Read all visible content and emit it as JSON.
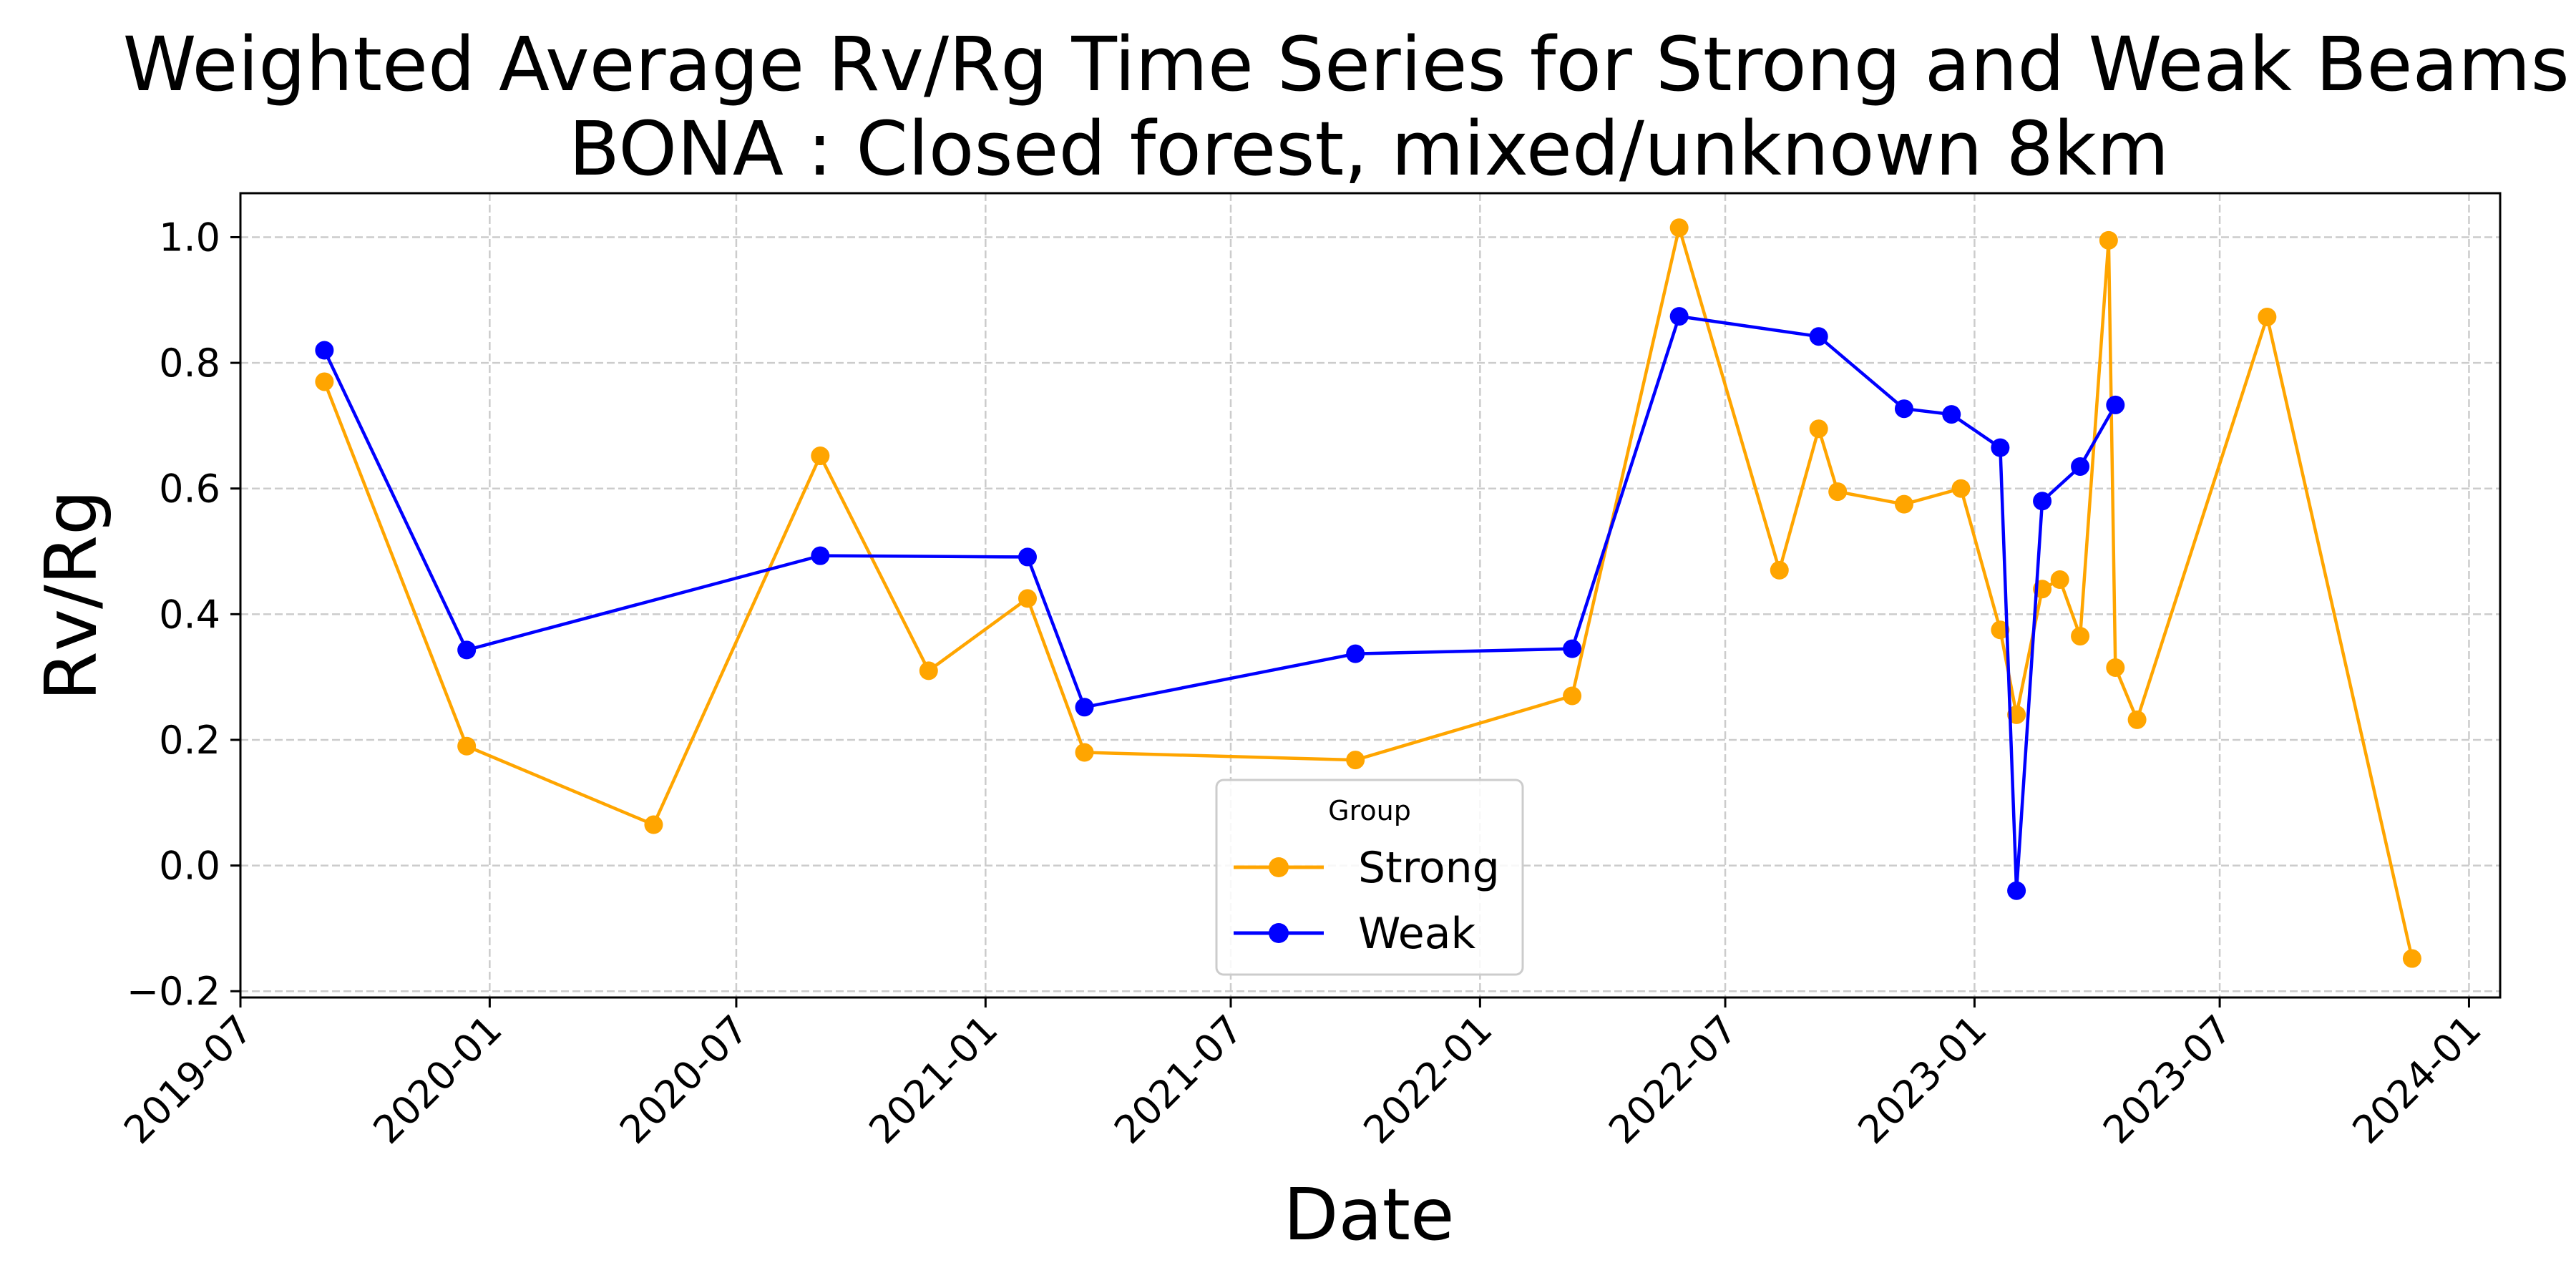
{
  "chart_data": {
    "type": "line",
    "title_lines": [
      "Weighted Average Rv/Rg Time Series for Strong and Weak Beams at",
      "BONA : Closed forest, mixed/unknown 8km"
    ],
    "xlabel": "Date",
    "ylabel": "Rv/Rg",
    "x_ticks": [
      "2019-07",
      "2020-01",
      "2020-07",
      "2021-01",
      "2021-07",
      "2022-01",
      "2022-07",
      "2023-01",
      "2023-07",
      "2024-01"
    ],
    "y_ticks": [
      "−0.2",
      "0.0",
      "0.2",
      "0.4",
      "0.6",
      "0.8",
      "1.0"
    ],
    "y_tick_values": [
      -0.2,
      0.0,
      0.2,
      0.4,
      0.6,
      0.8,
      1.0
    ],
    "xlim": [
      "2019-07-01",
      "2024-01-24"
    ],
    "ylim": [
      -0.21,
      1.07
    ],
    "grid": true,
    "legend": {
      "title": "Group",
      "placement": "lower center"
    },
    "series": [
      {
        "name": "Strong",
        "color": "#FFA500",
        "points": [
          {
            "x": "2019-09-01",
            "y": 0.77
          },
          {
            "x": "2019-12-15",
            "y": 0.19
          },
          {
            "x": "2020-05-01",
            "y": 0.065
          },
          {
            "x": "2020-09-01",
            "y": 0.652
          },
          {
            "x": "2020-11-20",
            "y": 0.31
          },
          {
            "x": "2021-02-01",
            "y": 0.425
          },
          {
            "x": "2021-03-15",
            "y": 0.18
          },
          {
            "x": "2021-10-01",
            "y": 0.168
          },
          {
            "x": "2022-03-10",
            "y": 0.27
          },
          {
            "x": "2022-05-28",
            "y": 1.015
          },
          {
            "x": "2022-08-10",
            "y": 0.47
          },
          {
            "x": "2022-09-08",
            "y": 0.695
          },
          {
            "x": "2022-09-22",
            "y": 0.595
          },
          {
            "x": "2022-11-10",
            "y": 0.575
          },
          {
            "x": "2022-12-22",
            "y": 0.6
          },
          {
            "x": "2023-01-20",
            "y": 0.375
          },
          {
            "x": "2023-02-01",
            "y": 0.24
          },
          {
            "x": "2023-02-20",
            "y": 0.44
          },
          {
            "x": "2023-03-05",
            "y": 0.455
          },
          {
            "x": "2023-03-20",
            "y": 0.365
          },
          {
            "x": "2023-04-10",
            "y": 0.995
          },
          {
            "x": "2023-04-15",
            "y": 0.315
          },
          {
            "x": "2023-05-01",
            "y": 0.232
          },
          {
            "x": "2023-08-05",
            "y": 0.873
          },
          {
            "x": "2023-11-20",
            "y": -0.148
          }
        ]
      },
      {
        "name": "Weak",
        "color": "#0000FF",
        "points": [
          {
            "x": "2019-09-01",
            "y": 0.82
          },
          {
            "x": "2019-12-15",
            "y": 0.343
          },
          {
            "x": "2020-09-01",
            "y": 0.493
          },
          {
            "x": "2021-02-01",
            "y": 0.491
          },
          {
            "x": "2021-03-15",
            "y": 0.252
          },
          {
            "x": "2021-10-01",
            "y": 0.337
          },
          {
            "x": "2022-03-10",
            "y": 0.345
          },
          {
            "x": "2022-05-28",
            "y": 0.874
          },
          {
            "x": "2022-09-08",
            "y": 0.842
          },
          {
            "x": "2022-11-10",
            "y": 0.727
          },
          {
            "x": "2022-12-15",
            "y": 0.718
          },
          {
            "x": "2023-01-20",
            "y": 0.665
          },
          {
            "x": "2023-02-01",
            "y": -0.04
          },
          {
            "x": "2023-02-20",
            "y": 0.58
          },
          {
            "x": "2023-03-20",
            "y": 0.635
          },
          {
            "x": "2023-04-15",
            "y": 0.733
          }
        ]
      }
    ]
  }
}
